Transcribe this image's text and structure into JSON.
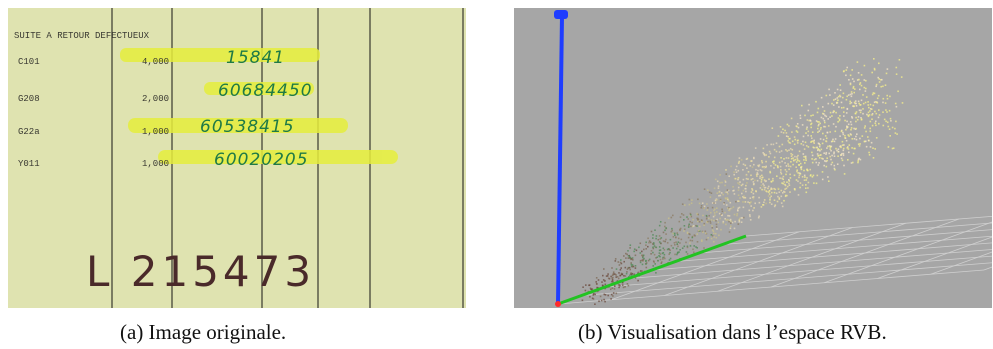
{
  "figure": {
    "left_caption": "(a) Image originale.",
    "right_caption": "(b) Visualisation dans l’espace RVB."
  },
  "document_scan": {
    "heading": "SUITE A RETOUR DEFECTUEUX",
    "rows": [
      {
        "code": "C101",
        "qty": "4,000",
        "handwritten": "15841"
      },
      {
        "code": "G208",
        "qty": "2,000",
        "handwritten": "60684450"
      },
      {
        "code": "G22a",
        "qty": "1,000",
        "handwritten": "60538415"
      },
      {
        "code": "Y011",
        "qty": "1,000",
        "handwritten": "60020205"
      }
    ],
    "bottom_handwriting": "L 215473",
    "paper_color": "#dfe3b0",
    "highlight_color": "#e6ee3c"
  },
  "rgb_space": {
    "background_color": "#a6a6a6",
    "axis_colors": {
      "blue": "#1f3dff",
      "green": "#22c322",
      "red": "#ff2a2a"
    }
  }
}
